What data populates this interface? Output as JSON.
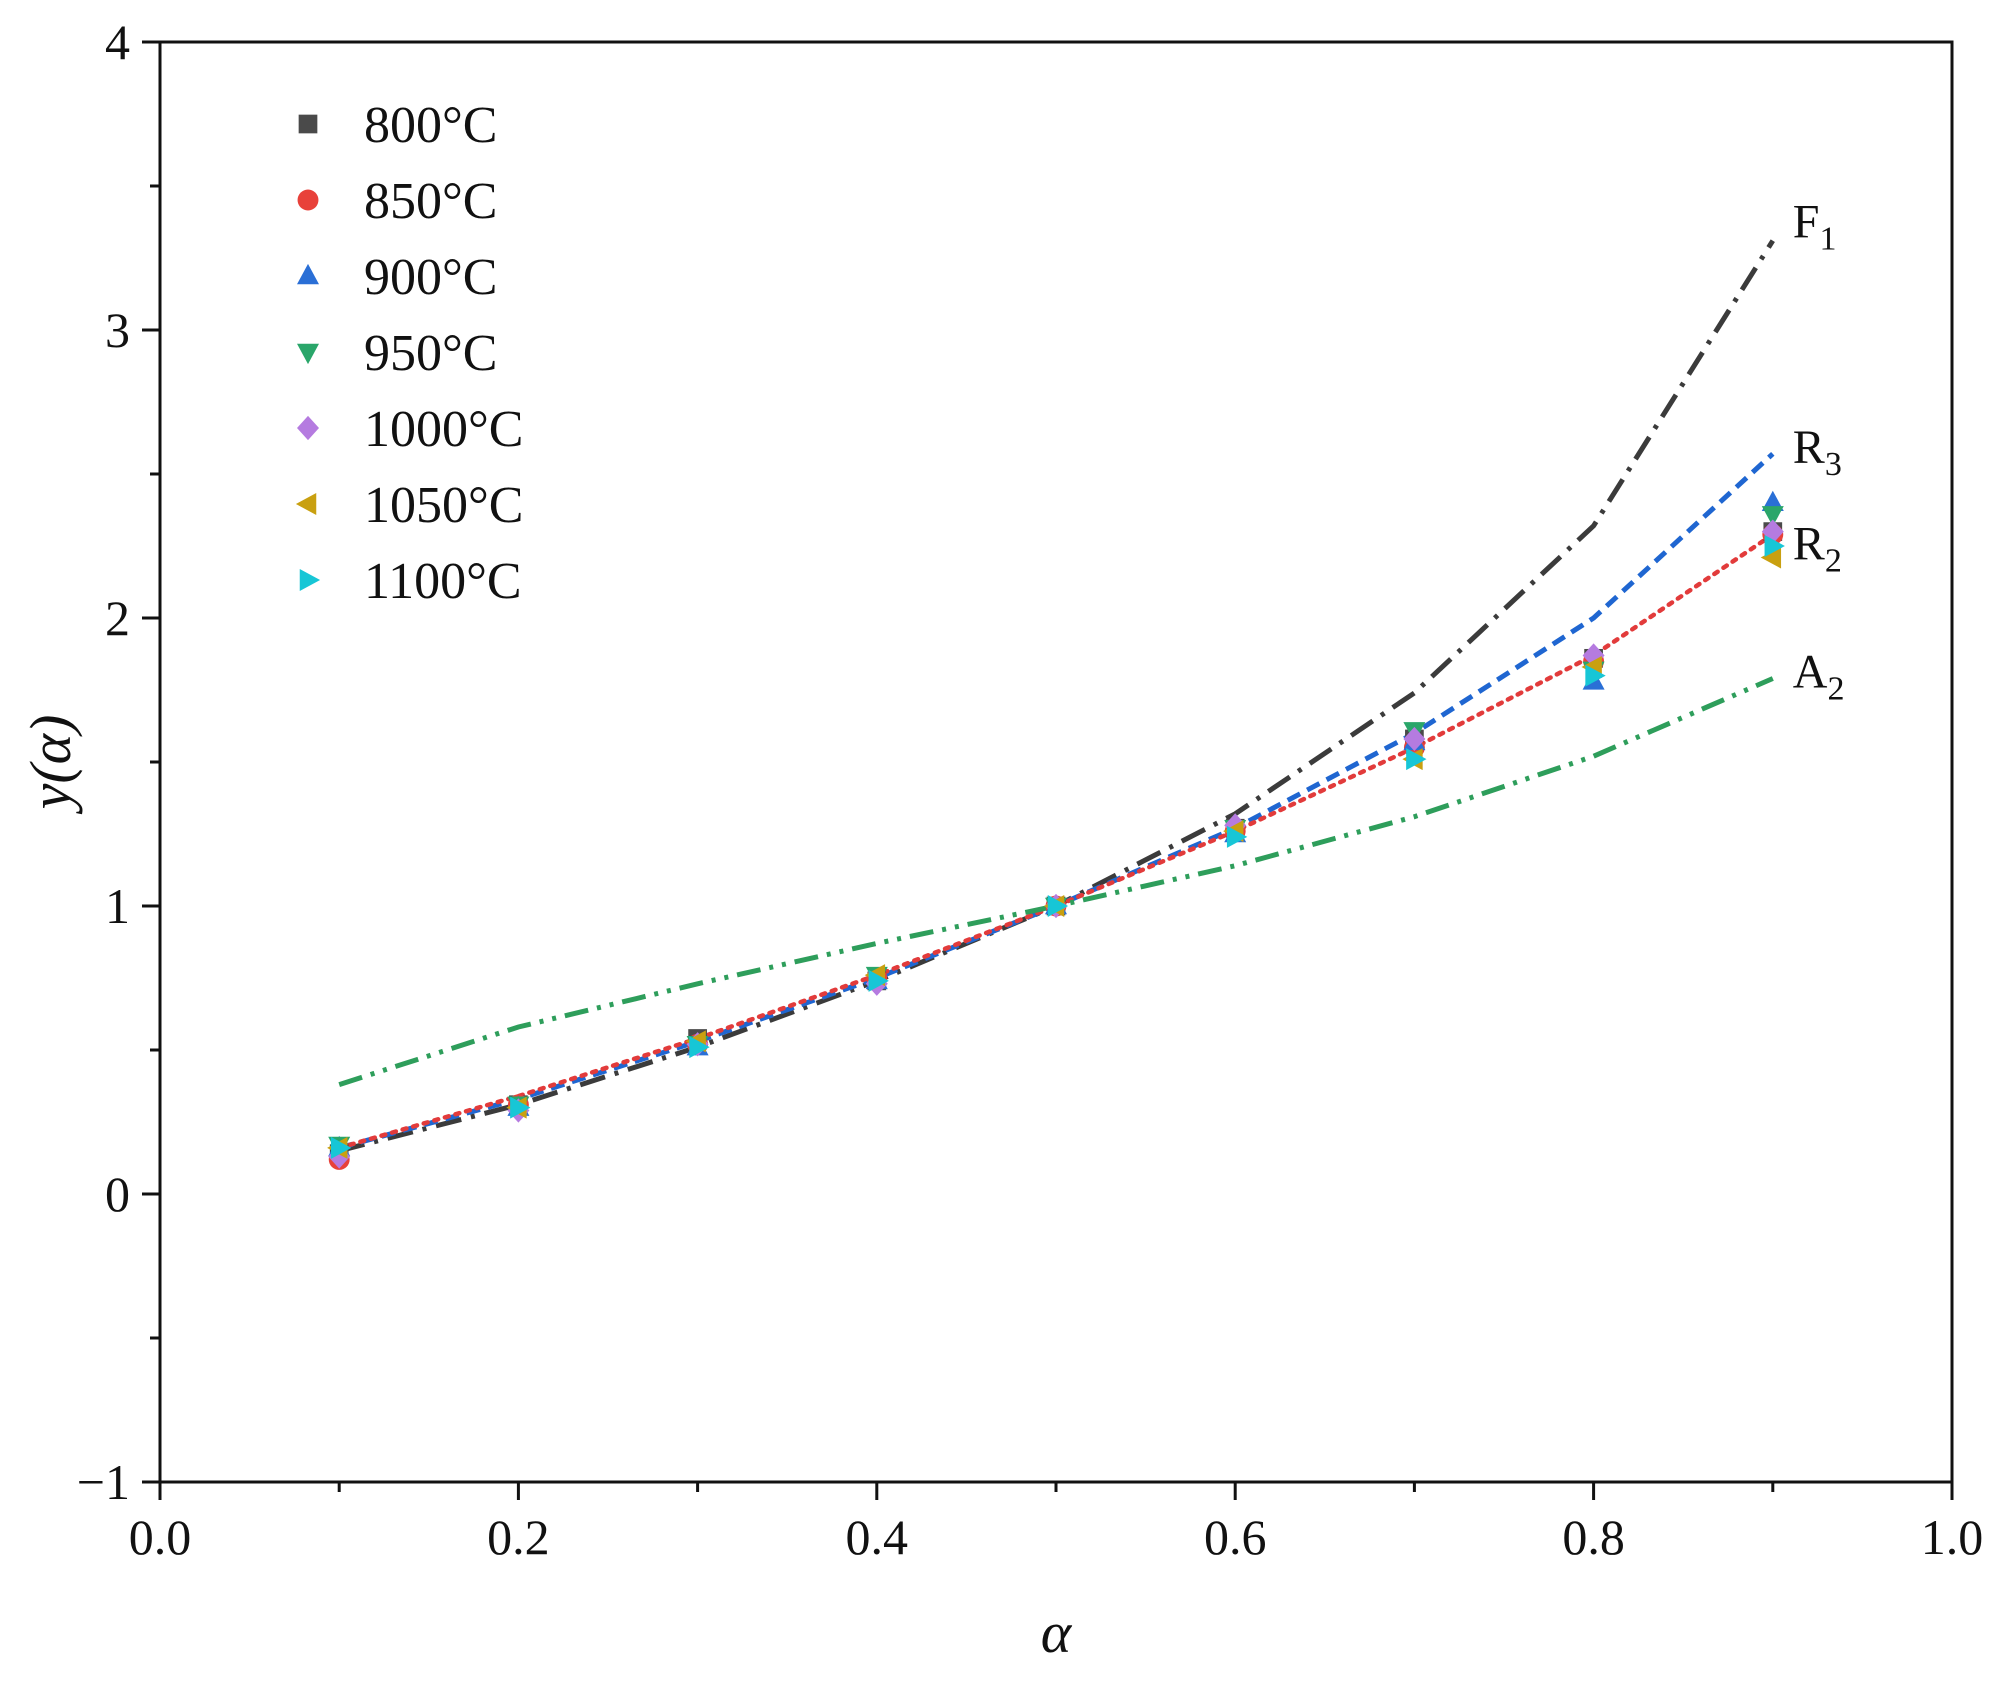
{
  "chart_data": {
    "type": "scatter",
    "title": "",
    "xlabel": "α",
    "ylabel": "y(α)",
    "xlim": [
      0.0,
      1.0
    ],
    "ylim": [
      -1,
      4
    ],
    "x_ticks": [
      "0.0",
      "0.2",
      "0.4",
      "0.6",
      "0.8",
      "1.0"
    ],
    "y_ticks": [
      "−1",
      "0",
      "1",
      "2",
      "3",
      "4"
    ],
    "legend_position": "top-left",
    "x": [
      0.1,
      0.2,
      0.3,
      0.4,
      0.5,
      0.6,
      0.7,
      0.8,
      0.9
    ],
    "series": [
      {
        "name": "800°C",
        "marker": "square",
        "color": "#4a4a4a",
        "values": [
          0.14,
          0.31,
          0.54,
          0.74,
          1.0,
          1.27,
          1.58,
          1.86,
          2.3
        ]
      },
      {
        "name": "850°C",
        "marker": "circle",
        "color": "#e8413a",
        "values": [
          0.12,
          0.31,
          0.52,
          0.75,
          1.0,
          1.26,
          1.55,
          1.85,
          2.29
        ]
      },
      {
        "name": "900°C",
        "marker": "triangle-up",
        "color": "#2a6fd6",
        "values": [
          0.16,
          0.3,
          0.51,
          0.74,
          1.0,
          1.25,
          1.57,
          1.78,
          2.4
        ]
      },
      {
        "name": "950°C",
        "marker": "triangle-down",
        "color": "#2aa66a",
        "values": [
          0.17,
          0.31,
          0.52,
          0.76,
          1.0,
          1.27,
          1.61,
          1.82,
          2.36
        ]
      },
      {
        "name": "1000°C",
        "marker": "diamond",
        "color": "#b57be0",
        "values": [
          0.13,
          0.29,
          0.52,
          0.73,
          1.0,
          1.28,
          1.58,
          1.87,
          2.3
        ]
      },
      {
        "name": "1050°C",
        "marker": "triangle-left",
        "color": "#c9a010",
        "values": [
          0.16,
          0.3,
          0.53,
          0.76,
          1.0,
          1.26,
          1.51,
          1.83,
          2.21
        ]
      },
      {
        "name": "1100°C",
        "marker": "triangle-right",
        "color": "#17c6d6",
        "values": [
          0.16,
          0.3,
          0.51,
          0.74,
          1.0,
          1.24,
          1.51,
          1.8,
          2.25
        ]
      }
    ],
    "model_curves": [
      {
        "name": "F",
        "sub": "1",
        "style": "dash-dot",
        "color": "#3b3b3b",
        "values": [
          0.15,
          0.31,
          0.51,
          0.74,
          1.0,
          1.32,
          1.74,
          2.32,
          3.31
        ]
      },
      {
        "name": "R",
        "sub": "3",
        "style": "dashed",
        "color": "#1f66d1",
        "values": [
          0.16,
          0.33,
          0.53,
          0.75,
          1.0,
          1.27,
          1.6,
          2.0,
          2.57
        ]
      },
      {
        "name": "R",
        "sub": "2",
        "style": "dotted",
        "color": "#e23b3b",
        "values": [
          0.16,
          0.34,
          0.54,
          0.76,
          1.0,
          1.26,
          1.55,
          1.87,
          2.29
        ]
      },
      {
        "name": "A",
        "sub": "2",
        "style": "dash-dot-dot",
        "color": "#2e9e5b",
        "values": [
          0.38,
          0.58,
          0.73,
          0.87,
          1.0,
          1.14,
          1.31,
          1.52,
          1.79
        ]
      }
    ]
  }
}
